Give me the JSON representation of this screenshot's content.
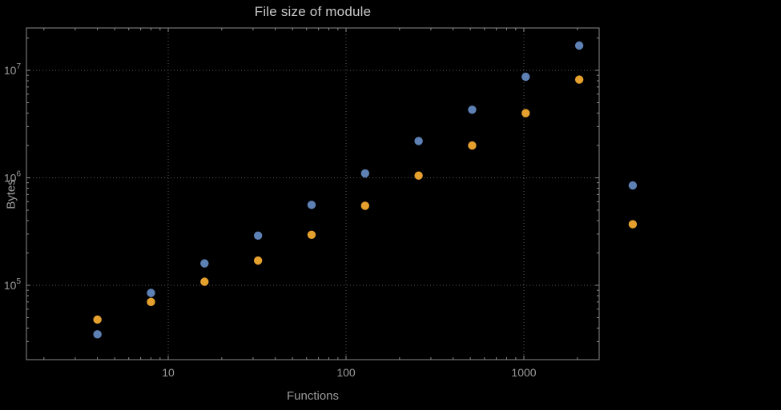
{
  "chart_data": {
    "type": "scatter",
    "title": "File size of module",
    "xlabel": "Functions",
    "ylabel": "Bytes",
    "x_scale": "log",
    "y_scale": "log",
    "x_ticks": [
      10,
      100,
      1000
    ],
    "y_ticks": [
      100000,
      1000000,
      10000000
    ],
    "x_axis_range_approx": [
      1.6,
      2650
    ],
    "y_axis_range_approx": [
      20000,
      25000000
    ],
    "grid": "dotted-major-gridlines",
    "legend": "none",
    "frame": true,
    "x": [
      4,
      8,
      16,
      32,
      64,
      128,
      256,
      512,
      1024,
      2048,
      4096
    ],
    "series": [
      {
        "name": "blue",
        "color": "#5e81b5",
        "values": [
          35000,
          85000,
          160000,
          290000,
          560000,
          1100000,
          2200000,
          4300000,
          8700000,
          17000000,
          850000
        ]
      },
      {
        "name": "orange",
        "color": "#e5a02d",
        "values": [
          48000,
          70000,
          108000,
          170000,
          295000,
          550000,
          1050000,
          2000000,
          4000000,
          8200000,
          370000
        ]
      }
    ]
  },
  "colors": {
    "background": "#000000",
    "frame": "#8c8c8c",
    "grid": "#5c5c5c",
    "title_text": "#c9c9c9",
    "label_text": "#9c9c9c",
    "tick_text": "#9c9c9c"
  }
}
